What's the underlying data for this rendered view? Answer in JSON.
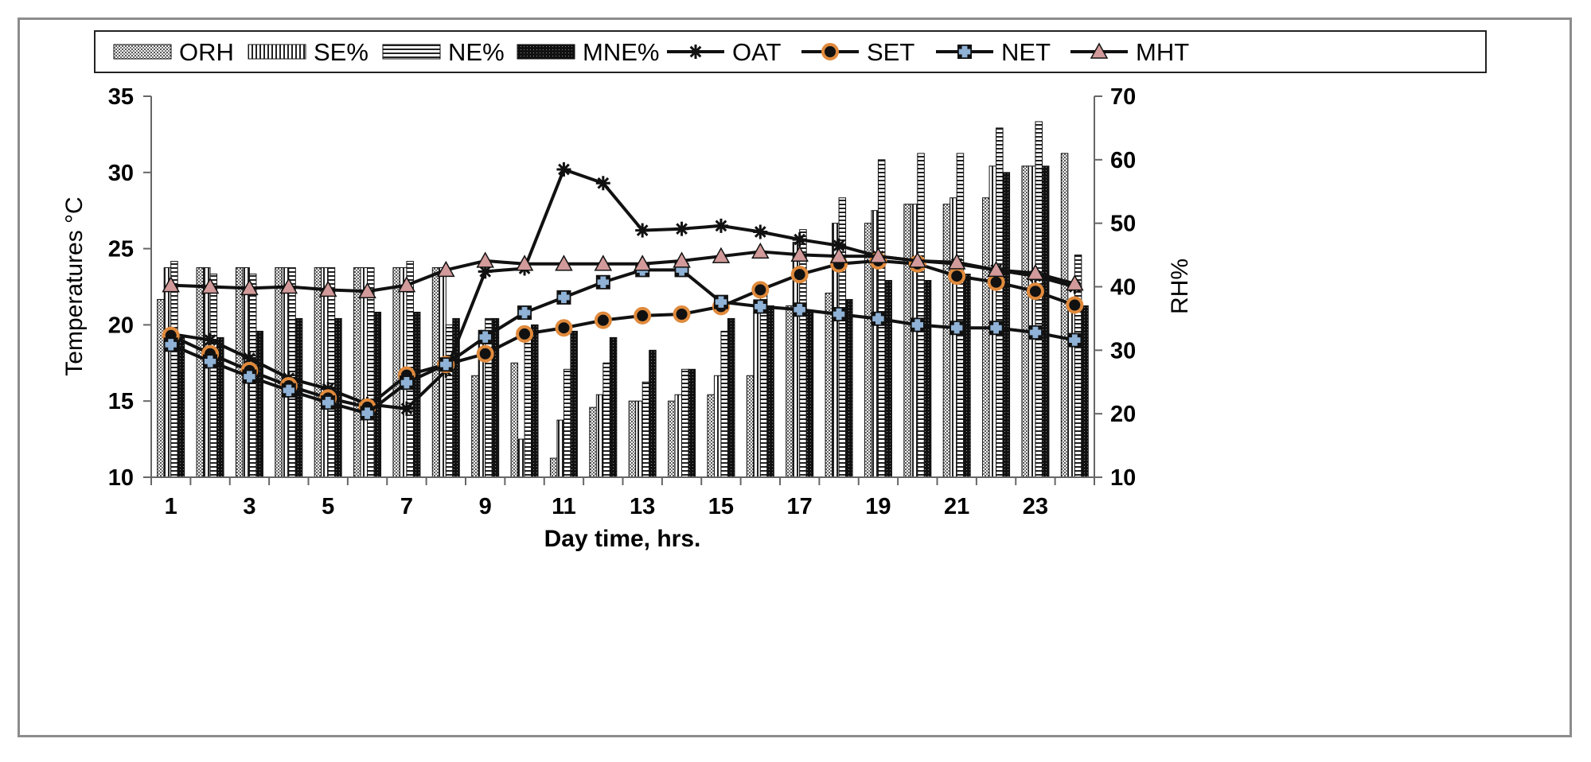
{
  "chart_data": {
    "type": "bar+line",
    "xlabel": "Day time, hrs.",
    "ylabel_left": "Temperatures °C",
    "ylabel_right": "RH%",
    "ylim_left": [
      10,
      35
    ],
    "ylim_right": [
      10,
      70
    ],
    "yticks_left": [
      "10",
      "15",
      "20",
      "25",
      "30",
      "35"
    ],
    "yticks_right": [
      "10",
      "20",
      "30",
      "40",
      "50",
      "60",
      "70"
    ],
    "x": [
      1,
      2,
      3,
      4,
      5,
      6,
      7,
      8,
      9,
      10,
      11,
      12,
      13,
      14,
      15,
      16,
      17,
      18,
      19,
      20,
      21,
      22,
      23,
      24
    ],
    "xtick_labels": [
      "1",
      "3",
      "5",
      "7",
      "9",
      "11",
      "13",
      "15",
      "17",
      "19",
      "21",
      "23"
    ],
    "legend_position": "top",
    "bar_series": [
      {
        "name": "ORH",
        "axis": "right",
        "pattern": "dots",
        "values": [
          38,
          43,
          43,
          43,
          43,
          43,
          43,
          43,
          26,
          28,
          13,
          21,
          22,
          22,
          23,
          26,
          37,
          39,
          50,
          53,
          53,
          54,
          59,
          61
        ]
      },
      {
        "name": "SE%",
        "axis": "right",
        "pattern": "vlines",
        "values": [
          43,
          43,
          43,
          43,
          43,
          43,
          43,
          43,
          32,
          16,
          19,
          23,
          22,
          23,
          26,
          36,
          47,
          50,
          52,
          53,
          54,
          59,
          59,
          38
        ]
      },
      {
        "name": "NE%",
        "axis": "right",
        "pattern": "hlines",
        "values": [
          44,
          42,
          42,
          43,
          43,
          43,
          44,
          34,
          35,
          33,
          27,
          28,
          25,
          27,
          33,
          40,
          49,
          54,
          60,
          61,
          61,
          65,
          66,
          45
        ]
      },
      {
        "name": "MNE%",
        "axis": "right",
        "pattern": "dark",
        "values": [
          32,
          32,
          33,
          35,
          35,
          36,
          36,
          35,
          35,
          34,
          33,
          32,
          30,
          27,
          35,
          37,
          36,
          38,
          41,
          41,
          42,
          58,
          59,
          37
        ]
      }
    ],
    "line_series": [
      {
        "name": "OAT",
        "axis": "left",
        "marker": "asterisk",
        "values": [
          19.4,
          19.0,
          17.8,
          16.5,
          15.8,
          14.8,
          14.5,
          17.0,
          23.5,
          23.7,
          30.2,
          29.3,
          26.2,
          26.3,
          26.5,
          26.1,
          25.6,
          25.2,
          24.5,
          24.2,
          24.0,
          23.6,
          23.2,
          22.5
        ]
      },
      {
        "name": "SET",
        "axis": "left",
        "marker": "circle",
        "color": "#e08a3c",
        "values": [
          19.3,
          18.1,
          17.0,
          16.0,
          15.2,
          14.6,
          16.7,
          17.4,
          18.1,
          19.4,
          19.8,
          20.3,
          20.6,
          20.7,
          21.2,
          22.3,
          23.3,
          24.0,
          24.2,
          24.0,
          23.2,
          22.8,
          22.2,
          21.3
        ]
      },
      {
        "name": "NET",
        "axis": "left",
        "marker": "cross",
        "color": "#8fb2d6",
        "values": [
          18.7,
          17.6,
          16.6,
          15.7,
          14.9,
          14.2,
          16.2,
          17.4,
          19.2,
          20.8,
          21.8,
          22.8,
          23.6,
          23.6,
          21.5,
          21.2,
          21.0,
          20.7,
          20.4,
          20.0,
          19.8,
          19.8,
          19.5,
          19.0
        ]
      },
      {
        "name": "MHT",
        "axis": "left",
        "marker": "triangle",
        "color": "#d29a9a",
        "values": [
          22.6,
          22.5,
          22.4,
          22.5,
          22.3,
          22.2,
          22.6,
          23.6,
          24.2,
          24.0,
          24.0,
          24.0,
          24.0,
          24.2,
          24.5,
          24.8,
          24.6,
          24.5,
          24.5,
          24.2,
          24.1,
          23.6,
          23.4,
          22.7
        ]
      }
    ]
  }
}
